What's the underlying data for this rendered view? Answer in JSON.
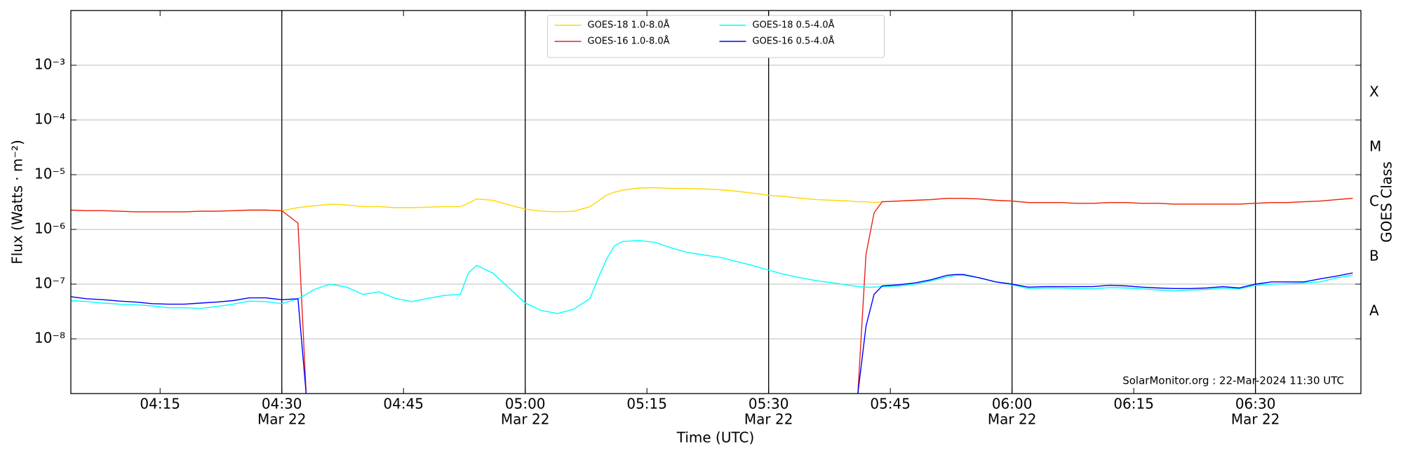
{
  "chart_data": {
    "type": "line",
    "yscale": "log",
    "xlabel": "Time (UTC)",
    "ylabel": "Flux (Watts · m⁻²)",
    "y2label": "GOES Class",
    "annotation": "SolarMonitor.org : 22-Mar-2024 11:30 UTC",
    "legend": "upper center",
    "xlim": [
      "04:04",
      "06:43"
    ],
    "xticks": [
      "04:15",
      "04:30",
      "04:45",
      "05:00",
      "05:15",
      "05:30",
      "05:45",
      "06:00",
      "06:15",
      "06:30"
    ],
    "xtick_dates": [
      null,
      "Mar 22",
      null,
      "Mar 22",
      null,
      "Mar 22",
      null,
      "Mar 22",
      null,
      "Mar 22"
    ],
    "ylim": [
      1e-09,
      0.01
    ],
    "yticks": [
      {
        "value": 1e-08,
        "label": "10⁻⁸"
      },
      {
        "value": 1e-07,
        "label": "10⁻⁷"
      },
      {
        "value": 1e-06,
        "label": "10⁻⁶"
      },
      {
        "value": 1e-05,
        "label": "10⁻⁵"
      },
      {
        "value": 0.0001,
        "label": "10⁻⁴"
      },
      {
        "value": 0.001,
        "label": "10⁻³"
      }
    ],
    "grid": true,
    "classes": [
      "A",
      "B",
      "C",
      "M",
      "X"
    ],
    "class_bounds": [
      1e-08,
      1e-07,
      1e-06,
      1e-05,
      0.0001
    ],
    "x": [
      "04:04",
      "04:06",
      "04:08",
      "04:10",
      "04:12",
      "04:14",
      "04:16",
      "04:18",
      "04:20",
      "04:22",
      "04:24",
      "04:26",
      "04:28",
      "04:30",
      "04:32",
      "04:33",
      "04:34",
      "04:36",
      "04:38",
      "04:40",
      "04:42",
      "04:44",
      "04:46",
      "04:48",
      "04:50",
      "04:52",
      "04:53",
      "04:54",
      "04:56",
      "04:58",
      "05:00",
      "05:02",
      "05:04",
      "05:06",
      "05:08",
      "05:09",
      "05:10",
      "05:11",
      "05:12",
      "05:14",
      "05:16",
      "05:18",
      "05:20",
      "05:22",
      "05:24",
      "05:26",
      "05:28",
      "05:30",
      "05:32",
      "05:34",
      "05:36",
      "05:38",
      "05:40",
      "05:41",
      "05:42",
      "05:43",
      "05:44",
      "05:46",
      "05:48",
      "05:50",
      "05:52",
      "05:53",
      "05:54",
      "05:56",
      "05:58",
      "06:00",
      "06:02",
      "06:04",
      "06:06",
      "06:08",
      "06:10",
      "06:12",
      "06:14",
      "06:16",
      "06:18",
      "06:20",
      "06:22",
      "06:24",
      "06:26",
      "06:28",
      "06:30",
      "06:32",
      "06:34",
      "06:36",
      "06:38",
      "06:40",
      "06:42"
    ],
    "series": [
      {
        "name": "GOES-18 1.0-8.0Å",
        "color": "#ffd700",
        "values": [
          2.25e-06,
          2.2e-06,
          2.2e-06,
          2.15e-06,
          2.1e-06,
          2.1e-06,
          2.1e-06,
          2.1e-06,
          2.15e-06,
          2.15e-06,
          2.2e-06,
          2.25e-06,
          2.25e-06,
          2.2e-06,
          2.5e-06,
          2.6e-06,
          2.7e-06,
          2.9e-06,
          2.8e-06,
          2.6e-06,
          2.6e-06,
          2.5e-06,
          2.5e-06,
          2.55e-06,
          2.6e-06,
          2.6e-06,
          3e-06,
          3.6e-06,
          3.4e-06,
          2.8e-06,
          2.35e-06,
          2.15e-06,
          2.1e-06,
          2.15e-06,
          2.6e-06,
          3.3e-06,
          4.2e-06,
          4.8e-06,
          5.2e-06,
          5.7e-06,
          5.8e-06,
          5.6e-06,
          5.6e-06,
          5.5e-06,
          5.3e-06,
          5e-06,
          4.6e-06,
          4.2e-06,
          4e-06,
          3.7e-06,
          3.5e-06,
          3.4e-06,
          3.3e-06,
          3.2e-06,
          3.2e-06,
          3.1e-06,
          3.2e-06,
          3.3e-06,
          3.4e-06,
          3.5e-06,
          3.7e-06,
          3.7e-06,
          3.7e-06,
          3.6e-06,
          3.4e-06,
          3.3e-06,
          3.1e-06,
          3.1e-06,
          3.1e-06,
          3e-06,
          3e-06,
          3.1e-06,
          3.1e-06,
          3e-06,
          3e-06,
          2.9e-06,
          2.9e-06,
          2.9e-06,
          2.9e-06,
          2.9e-06,
          3e-06,
          3.1e-06,
          3.1e-06,
          3.2e-06,
          3.3e-06,
          3.5e-06,
          3.7e-06
        ]
      },
      {
        "name": "GOES-16 1.0-8.0Å",
        "color": "#e8231c",
        "values": [
          2.25e-06,
          2.2e-06,
          2.2e-06,
          2.15e-06,
          2.1e-06,
          2.1e-06,
          2.1e-06,
          2.1e-06,
          2.15e-06,
          2.15e-06,
          2.2e-06,
          2.25e-06,
          2.25e-06,
          2.2e-06,
          1.3e-06,
          1e-09,
          null,
          null,
          null,
          null,
          null,
          null,
          null,
          null,
          null,
          null,
          null,
          null,
          null,
          null,
          null,
          null,
          null,
          null,
          null,
          null,
          null,
          null,
          null,
          null,
          null,
          null,
          null,
          null,
          null,
          null,
          null,
          null,
          null,
          null,
          null,
          null,
          null,
          1e-09,
          3.5e-07,
          2e-06,
          3.2e-06,
          3.3e-06,
          3.4e-06,
          3.5e-06,
          3.7e-06,
          3.7e-06,
          3.7e-06,
          3.6e-06,
          3.4e-06,
          3.3e-06,
          3.1e-06,
          3.1e-06,
          3.1e-06,
          3e-06,
          3e-06,
          3.1e-06,
          3.1e-06,
          3e-06,
          3e-06,
          2.9e-06,
          2.9e-06,
          2.9e-06,
          2.9e-06,
          2.9e-06,
          3e-06,
          3.1e-06,
          3.1e-06,
          3.2e-06,
          3.3e-06,
          3.5e-06,
          3.7e-06
        ]
      },
      {
        "name": "GOES-18 0.5-4.0Å",
        "color": "#00ffff",
        "values": [
          5e-08,
          4.8e-08,
          4.5e-08,
          4.3e-08,
          4.2e-08,
          4e-08,
          3.7e-08,
          3.7e-08,
          3.6e-08,
          3.9e-08,
          4.3e-08,
          4.9e-08,
          4.8e-08,
          4.4e-08,
          5.4e-08,
          6.5e-08,
          8e-08,
          1e-07,
          8.8e-08,
          6.5e-08,
          7.2e-08,
          5.5e-08,
          4.8e-08,
          5.5e-08,
          6.2e-08,
          6.5e-08,
          1.6e-07,
          2.2e-07,
          1.6e-07,
          8.5e-08,
          4.5e-08,
          3.3e-08,
          2.9e-08,
          3.5e-08,
          5.5e-08,
          1.3e-07,
          2.8e-07,
          5e-07,
          6e-07,
          6.3e-07,
          5.8e-07,
          4.6e-07,
          3.8e-07,
          3.4e-07,
          3.1e-07,
          2.6e-07,
          2.2e-07,
          1.8e-07,
          1.5e-07,
          1.3e-07,
          1.15e-07,
          1.05e-07,
          9.5e-08,
          9e-08,
          8.8e-08,
          8.8e-08,
          9e-08,
          9.2e-08,
          1e-07,
          1.15e-07,
          1.35e-07,
          1.45e-07,
          1.45e-07,
          1.3e-07,
          1.1e-07,
          9.8e-08,
          8.3e-08,
          8.5e-08,
          8.5e-08,
          8.3e-08,
          8.2e-08,
          8.6e-08,
          8.5e-08,
          8.2e-08,
          7.8e-08,
          7.5e-08,
          7.8e-08,
          8e-08,
          8.5e-08,
          8.2e-08,
          9.5e-08,
          1e-07,
          1.02e-07,
          1.05e-07,
          1.1e-07,
          1.3e-07,
          1.45e-07
        ]
      },
      {
        "name": "GOES-16 0.5-4.0Å",
        "color": "#0000ff",
        "values": [
          5.9e-08,
          5.4e-08,
          5.2e-08,
          4.9e-08,
          4.7e-08,
          4.4e-08,
          4.3e-08,
          4.3e-08,
          4.5e-08,
          4.7e-08,
          5e-08,
          5.6e-08,
          5.6e-08,
          5.2e-08,
          5.4e-08,
          1e-09,
          null,
          null,
          null,
          null,
          null,
          null,
          null,
          null,
          null,
          null,
          null,
          null,
          null,
          null,
          null,
          null,
          null,
          null,
          null,
          null,
          null,
          null,
          null,
          null,
          null,
          null,
          null,
          null,
          null,
          null,
          null,
          null,
          null,
          null,
          null,
          null,
          null,
          1e-09,
          1.7e-08,
          6.5e-08,
          9.3e-08,
          9.7e-08,
          1.05e-07,
          1.2e-07,
          1.45e-07,
          1.5e-07,
          1.5e-07,
          1.3e-07,
          1.1e-07,
          1e-07,
          8.8e-08,
          9e-08,
          9e-08,
          9e-08,
          9e-08,
          9.5e-08,
          9.3e-08,
          8.8e-08,
          8.5e-08,
          8.3e-08,
          8.3e-08,
          8.5e-08,
          9e-08,
          8.5e-08,
          1e-07,
          1.1e-07,
          1.1e-07,
          1.1e-07,
          1.25e-07,
          1.4e-07,
          1.6e-07
        ]
      }
    ]
  }
}
